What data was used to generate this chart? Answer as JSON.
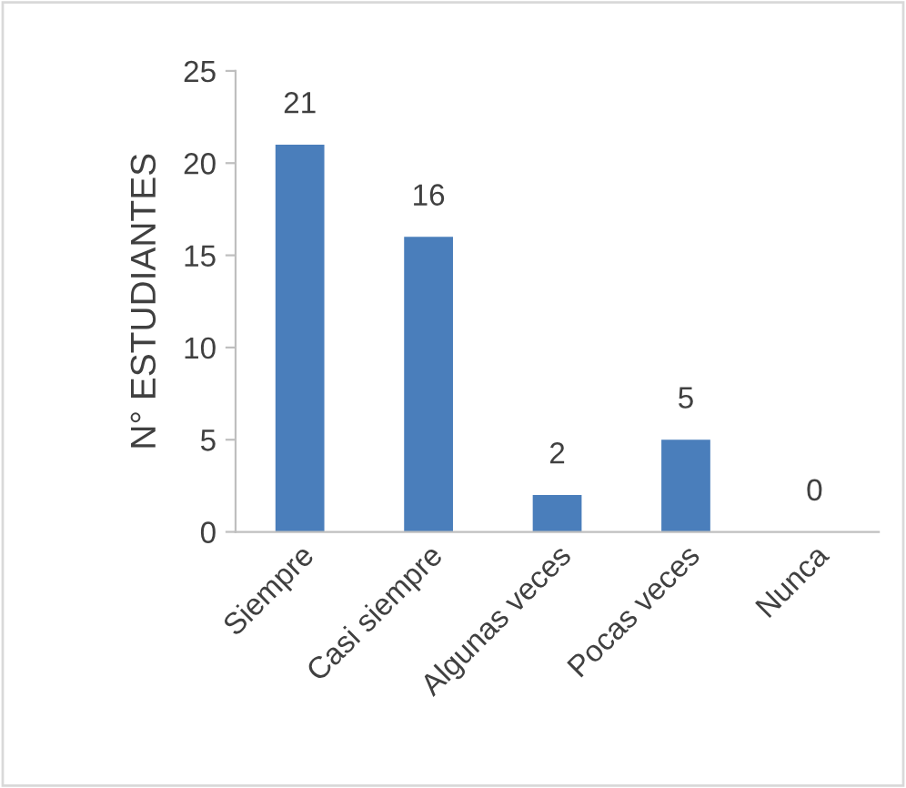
{
  "chart_data": {
    "type": "bar",
    "ylabel": "N° ESTUDIANTES",
    "categories": [
      "Siempre",
      "Casi siempre",
      "Algunas veces",
      "Pocas veces",
      "Nunca"
    ],
    "values": [
      21,
      16,
      2,
      5,
      0
    ],
    "color": "#4a7ebb",
    "ylim": [
      0,
      25
    ],
    "yticks": [
      0,
      5,
      10,
      15,
      20,
      25
    ],
    "grid": false,
    "data_labels": true
  }
}
